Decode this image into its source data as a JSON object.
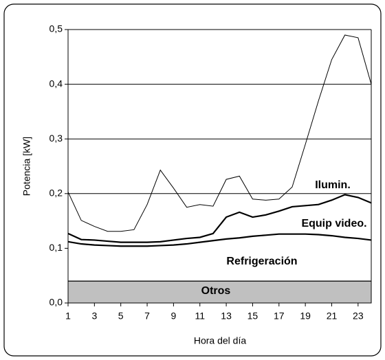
{
  "chart_data": {
    "type": "stacked-area",
    "x_label": "Hora del día",
    "y_label": "Potencia [kW]",
    "x": [
      1,
      2,
      3,
      4,
      5,
      6,
      7,
      8,
      9,
      10,
      11,
      12,
      13,
      14,
      15,
      16,
      17,
      18,
      19,
      20,
      21,
      22,
      23,
      24
    ],
    "xlim": [
      1,
      24
    ],
    "xticks": [
      1,
      3,
      5,
      7,
      9,
      11,
      13,
      15,
      17,
      19,
      21,
      23
    ],
    "ylim": [
      0,
      0.5
    ],
    "yticks": [
      {
        "value": 0,
        "label": "0,0"
      },
      {
        "value": 0.1,
        "label": "0,1"
      },
      {
        "value": 0.2,
        "label": "0,2"
      },
      {
        "value": 0.3,
        "label": "0,3"
      },
      {
        "value": 0.4,
        "label": "0,4"
      },
      {
        "value": 0.5,
        "label": "0,5"
      }
    ],
    "grid": true,
    "series": [
      {
        "name": "Otros",
        "color": "#c0c0c0",
        "values": [
          0.04,
          0.04,
          0.04,
          0.04,
          0.04,
          0.04,
          0.04,
          0.04,
          0.04,
          0.04,
          0.04,
          0.04,
          0.04,
          0.04,
          0.04,
          0.04,
          0.04,
          0.04,
          0.04,
          0.04,
          0.04,
          0.04,
          0.04,
          0.04
        ]
      },
      {
        "name": "Refrigeración",
        "color": "#ffffff",
        "values": [
          0.072,
          0.068,
          0.066,
          0.065,
          0.064,
          0.064,
          0.064,
          0.065,
          0.066,
          0.068,
          0.071,
          0.074,
          0.077,
          0.079,
          0.082,
          0.084,
          0.086,
          0.086,
          0.086,
          0.085,
          0.083,
          0.08,
          0.078,
          0.075
        ]
      },
      {
        "name": "Equip video.",
        "color": "#ffffff",
        "values": [
          0.015,
          0.008,
          0.009,
          0.008,
          0.007,
          0.007,
          0.007,
          0.007,
          0.009,
          0.01,
          0.009,
          0.013,
          0.04,
          0.047,
          0.035,
          0.037,
          0.042,
          0.05,
          0.052,
          0.055,
          0.065,
          0.078,
          0.075,
          0.068
        ]
      },
      {
        "name": "Ilumin.",
        "color": "#ffffff",
        "values": [
          0.076,
          0.035,
          0.025,
          0.018,
          0.02,
          0.023,
          0.069,
          0.131,
          0.095,
          0.057,
          0.06,
          0.05,
          0.069,
          0.066,
          0.033,
          0.027,
          0.022,
          0.036,
          0.112,
          0.19,
          0.257,
          0.292,
          0.292,
          0.217
        ]
      }
    ]
  }
}
